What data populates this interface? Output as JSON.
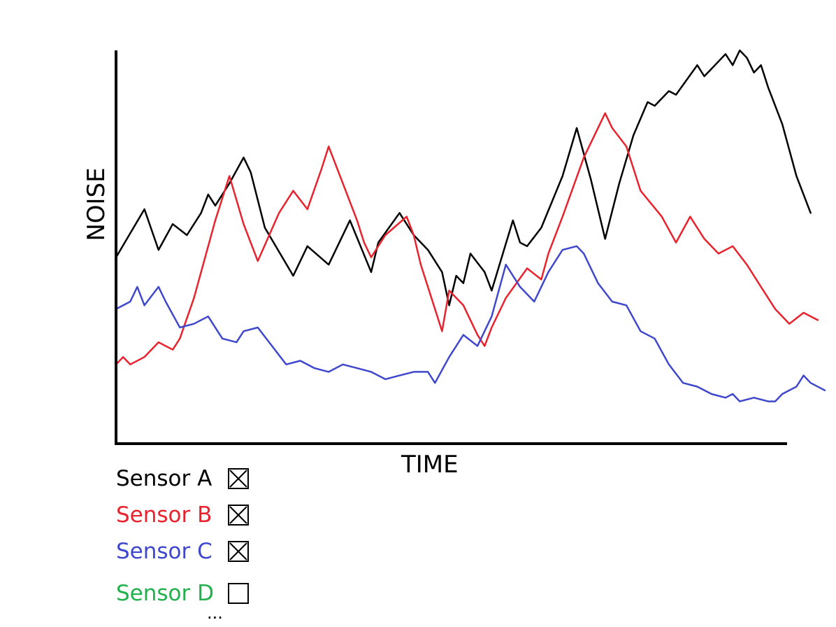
{
  "chart_data": {
    "type": "line",
    "title": "",
    "xlabel": "TIME",
    "ylabel": "NOISE",
    "xlim": [
      0,
      100
    ],
    "ylim": [
      0,
      100
    ],
    "grid": false,
    "legend": "bottom-left",
    "series": [
      {
        "name": "Sensor A",
        "color": "#000000",
        "checked": true,
        "points": [
          [
            0,
            44
          ],
          [
            4,
            57
          ],
          [
            6,
            46
          ],
          [
            8,
            53
          ],
          [
            10,
            50
          ],
          [
            12,
            56
          ],
          [
            13,
            61
          ],
          [
            14,
            58
          ],
          [
            16,
            64
          ],
          [
            18,
            71
          ],
          [
            19,
            67
          ],
          [
            21,
            52
          ],
          [
            25,
            39
          ],
          [
            27,
            47
          ],
          [
            30,
            42
          ],
          [
            33,
            54
          ],
          [
            36,
            40
          ],
          [
            37,
            48
          ],
          [
            40,
            56
          ],
          [
            42,
            50
          ],
          [
            44,
            46
          ],
          [
            46,
            40
          ],
          [
            47,
            31
          ],
          [
            48,
            39
          ],
          [
            49,
            37
          ],
          [
            50,
            45
          ],
          [
            52,
            40
          ],
          [
            53,
            35
          ],
          [
            56,
            54
          ],
          [
            57,
            48
          ],
          [
            58,
            47
          ],
          [
            60,
            52
          ],
          [
            63,
            66
          ],
          [
            65,
            79
          ],
          [
            67,
            65
          ],
          [
            69,
            49
          ],
          [
            71,
            64
          ],
          [
            73,
            77
          ],
          [
            75,
            86
          ],
          [
            76,
            85
          ],
          [
            78,
            89
          ],
          [
            79,
            88
          ],
          [
            82,
            96
          ],
          [
            83,
            93
          ],
          [
            84,
            95
          ],
          [
            86,
            99
          ],
          [
            87,
            96
          ],
          [
            88,
            100
          ],
          [
            89,
            98
          ],
          [
            90,
            94
          ],
          [
            91,
            96
          ],
          [
            92,
            90
          ],
          [
            94,
            80
          ],
          [
            96,
            66
          ],
          [
            98,
            56
          ]
        ]
      },
      {
        "name": "Sensor B",
        "color": "#e8232e",
        "checked": true,
        "points": [
          [
            0,
            15
          ],
          [
            1,
            17
          ],
          [
            2,
            15
          ],
          [
            4,
            17
          ],
          [
            6,
            21
          ],
          [
            8,
            19
          ],
          [
            9,
            22
          ],
          [
            11,
            33
          ],
          [
            14,
            54
          ],
          [
            16,
            66
          ],
          [
            18,
            53
          ],
          [
            20,
            43
          ],
          [
            23,
            56
          ],
          [
            25,
            62
          ],
          [
            27,
            57
          ],
          [
            29,
            68
          ],
          [
            30,
            74
          ],
          [
            32,
            64
          ],
          [
            34,
            54
          ],
          [
            35,
            48
          ],
          [
            36,
            44
          ],
          [
            38,
            50
          ],
          [
            41,
            55
          ],
          [
            42,
            50
          ],
          [
            43,
            42
          ],
          [
            46,
            24
          ],
          [
            47,
            35
          ],
          [
            49,
            31
          ],
          [
            51,
            23
          ],
          [
            52,
            20
          ],
          [
            53,
            25
          ],
          [
            55,
            33
          ],
          [
            58,
            41
          ],
          [
            60,
            38
          ],
          [
            61,
            45
          ],
          [
            63,
            55
          ],
          [
            66,
            71
          ],
          [
            69,
            83
          ],
          [
            70,
            79
          ],
          [
            72,
            74
          ],
          [
            74,
            62
          ],
          [
            77,
            55
          ],
          [
            79,
            48
          ],
          [
            81,
            55
          ],
          [
            83,
            49
          ],
          [
            85,
            45
          ],
          [
            87,
            47
          ],
          [
            89,
            42
          ],
          [
            91,
            36
          ],
          [
            93,
            30
          ],
          [
            95,
            26
          ],
          [
            97,
            29
          ],
          [
            99,
            27
          ]
        ]
      },
      {
        "name": "Sensor C",
        "color": "#3f48cc",
        "checked": true,
        "points": [
          [
            0,
            30
          ],
          [
            2,
            32
          ],
          [
            3,
            36
          ],
          [
            4,
            31
          ],
          [
            6,
            36
          ],
          [
            7,
            32
          ],
          [
            9,
            25
          ],
          [
            11,
            26
          ],
          [
            13,
            28
          ],
          [
            15,
            22
          ],
          [
            17,
            21
          ],
          [
            18,
            24
          ],
          [
            20,
            25
          ],
          [
            22,
            20
          ],
          [
            24,
            15
          ],
          [
            26,
            16
          ],
          [
            28,
            14
          ],
          [
            30,
            13
          ],
          [
            32,
            15
          ],
          [
            34,
            14
          ],
          [
            36,
            13
          ],
          [
            38,
            11
          ],
          [
            40,
            12
          ],
          [
            42,
            13
          ],
          [
            44,
            13
          ],
          [
            45,
            10
          ],
          [
            47,
            17
          ],
          [
            49,
            23
          ],
          [
            51,
            20
          ],
          [
            53,
            28
          ],
          [
            55,
            42
          ],
          [
            57,
            36
          ],
          [
            59,
            32
          ],
          [
            61,
            40
          ],
          [
            63,
            46
          ],
          [
            65,
            47
          ],
          [
            66,
            45
          ],
          [
            68,
            37
          ],
          [
            70,
            32
          ],
          [
            72,
            31
          ],
          [
            74,
            24
          ],
          [
            76,
            22
          ],
          [
            78,
            15
          ],
          [
            80,
            10
          ],
          [
            82,
            9
          ],
          [
            84,
            7
          ],
          [
            86,
            6
          ],
          [
            87,
            7
          ],
          [
            88,
            5
          ],
          [
            90,
            6
          ],
          [
            92,
            5
          ],
          [
            93,
            5
          ],
          [
            94,
            7
          ],
          [
            96,
            9
          ],
          [
            97,
            12
          ],
          [
            98,
            10
          ],
          [
            100,
            8
          ]
        ]
      },
      {
        "name": "Sensor D",
        "color": "#22b14c",
        "checked": false,
        "points": []
      }
    ],
    "more": "..."
  }
}
